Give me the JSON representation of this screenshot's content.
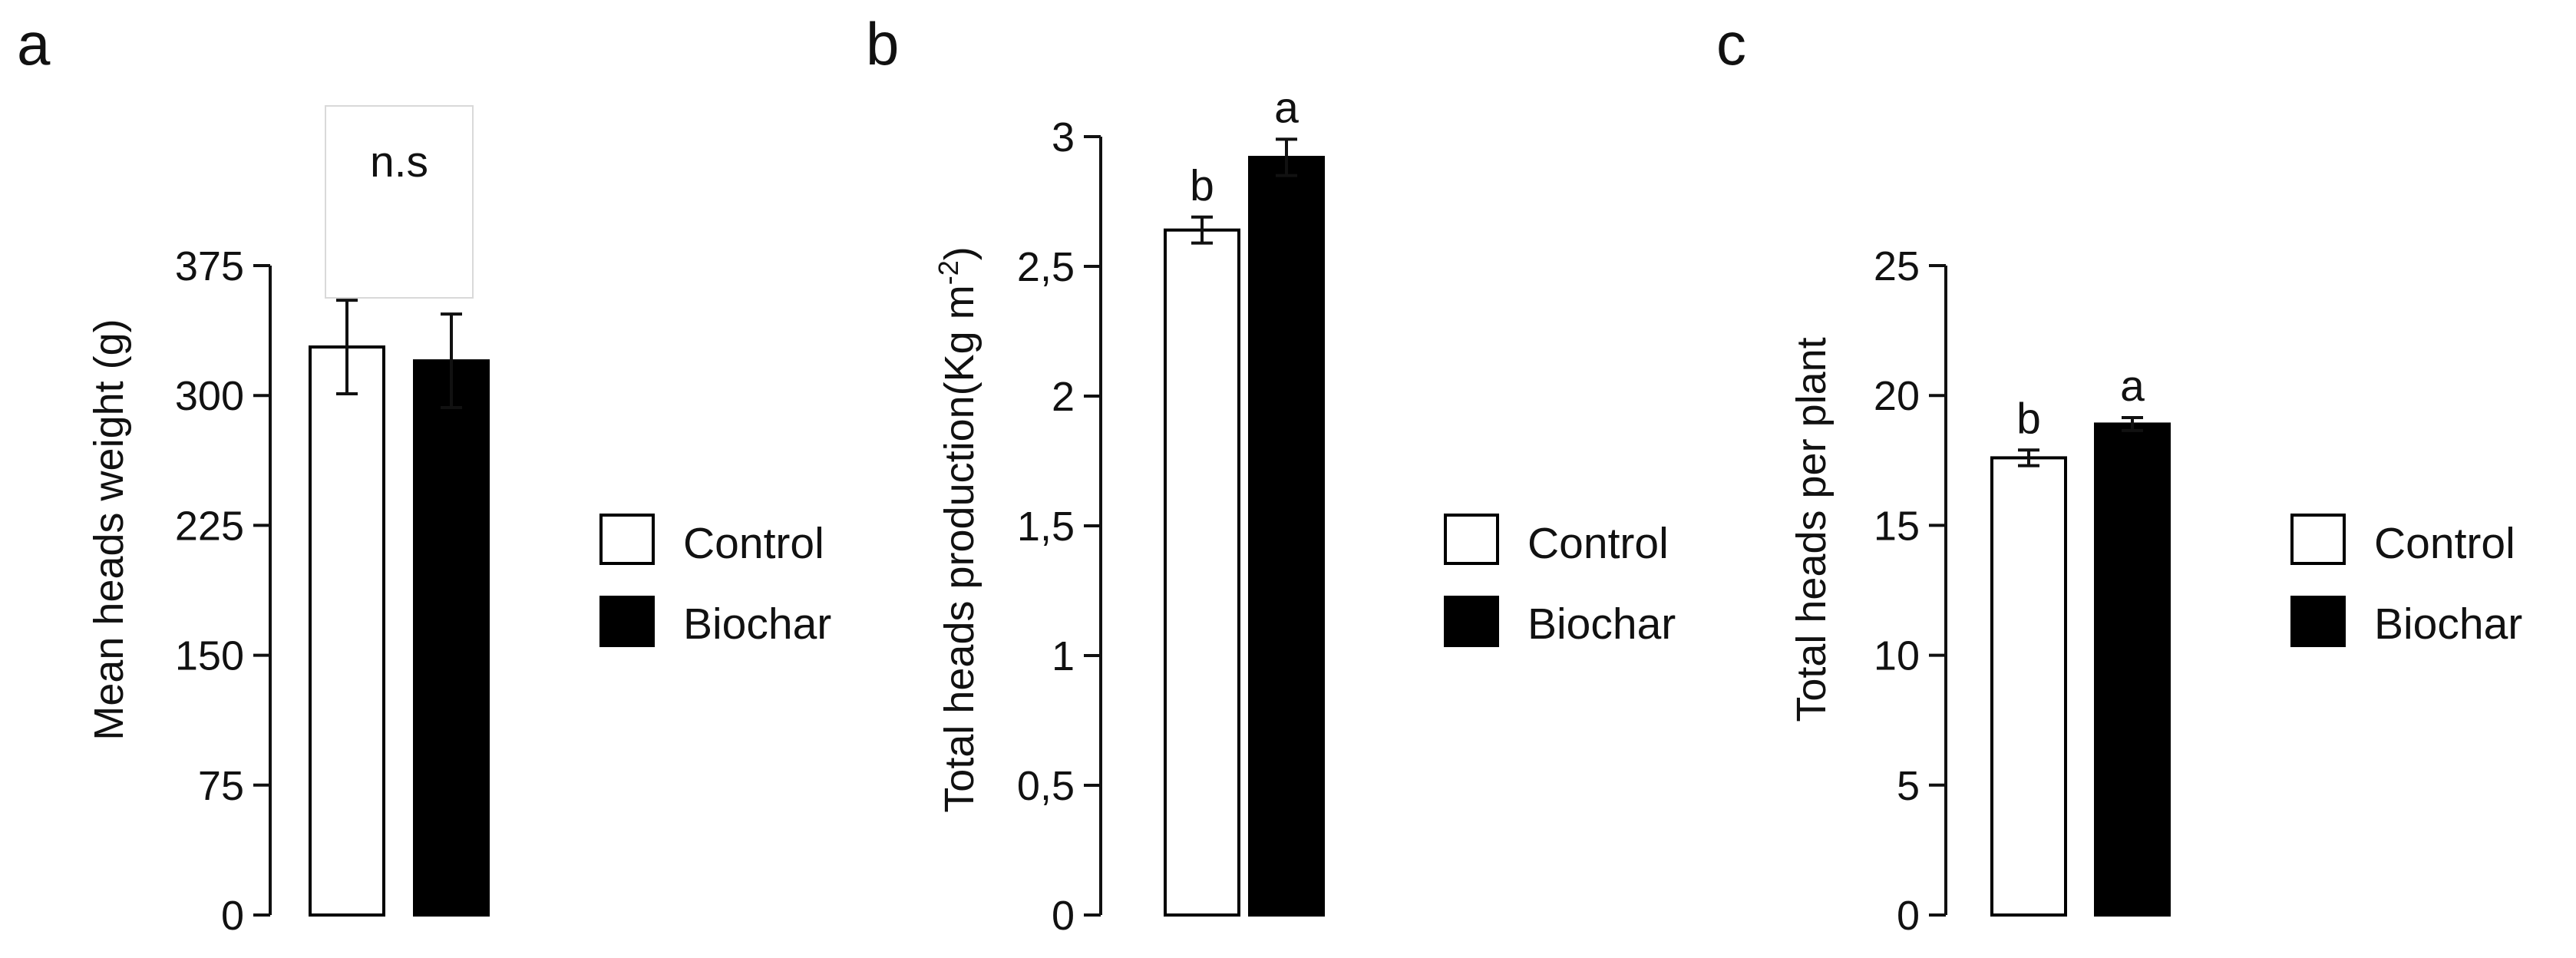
{
  "legend_colors": {
    "Control": "#ffffff",
    "Biochar": "#000000",
    "edge": "#000000"
  },
  "chart_data": [
    {
      "type": "bar",
      "panel": "a",
      "categories": [
        "Control",
        "Biochar"
      ],
      "values": [
        328,
        320
      ],
      "errors": [
        27,
        27
      ],
      "ylabel": "Mean heads weight (g)",
      "ylim": [
        0,
        375
      ],
      "yticks": [
        0,
        75,
        150,
        225,
        300,
        375
      ],
      "ytick_labels": [
        "0",
        "75",
        "150",
        "225",
        "300",
        "375"
      ],
      "annotation": "n.s",
      "legend": [
        "Control",
        "Biochar"
      ],
      "legend_placement": "right"
    },
    {
      "type": "bar",
      "panel": "b",
      "categories": [
        "Control",
        "Biochar"
      ],
      "values": [
        2.64,
        2.92
      ],
      "errors": [
        0.05,
        0.07
      ],
      "significance": [
        "b",
        "a"
      ],
      "ylabel": "Total heads production(Kg m",
      "ylabel_superscript": "-2",
      "ylabel_suffix": ")",
      "ylim": [
        0,
        3
      ],
      "yticks": [
        0,
        0.5,
        1,
        1.5,
        2,
        2.5,
        3
      ],
      "ytick_labels": [
        "0",
        "0,5",
        "1",
        "1,5",
        "2",
        "2,5",
        "3"
      ],
      "legend": [
        "Control",
        "Biochar"
      ],
      "legend_placement": "right"
    },
    {
      "type": "bar",
      "panel": "c",
      "categories": [
        "Control",
        "Biochar"
      ],
      "values": [
        17.6,
        18.9
      ],
      "errors": [
        0.3,
        0.25
      ],
      "significance": [
        "b",
        "a"
      ],
      "ylabel": "Total heads per plant",
      "ylim": [
        0,
        25
      ],
      "yticks": [
        0,
        5,
        10,
        15,
        20,
        25
      ],
      "ytick_labels": [
        "0",
        "5",
        "10",
        "15",
        "20",
        "25"
      ],
      "legend": [
        "Control",
        "Biochar"
      ],
      "legend_placement": "right"
    }
  ]
}
